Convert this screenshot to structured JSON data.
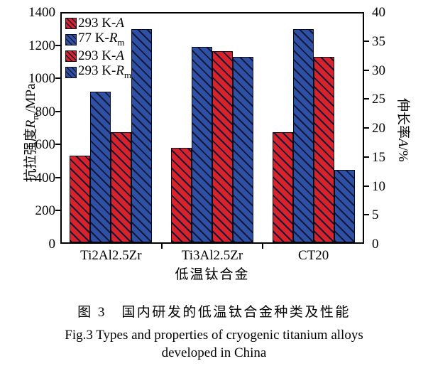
{
  "figure": {
    "caption_cn": "图 3　国内研发的低温钛合金种类及性能",
    "caption_en_line1": "Fig.3 Types and properties of cryogenic titanium alloys",
    "caption_en_line2": "developed in China"
  },
  "colors": {
    "red_bar": "#d8232a",
    "blue_bar": "#2e51a5",
    "hatch_line": "#15173a",
    "axis": "#000000"
  },
  "chart_data": {
    "type": "bar",
    "categories": [
      "Ti2Al2.5Zr",
      "Ti3Al2.5Zr",
      "CT20"
    ],
    "series": [
      {
        "name": "293 K-A",
        "label_prefix": "293 K-",
        "symbol": "A",
        "symbol_sub": "",
        "color_key": "red",
        "axis": "right",
        "values": [
          15.0,
          16.3,
          19.0
        ]
      },
      {
        "name": "77 K-Rm",
        "label_prefix": "77 K-",
        "symbol": "R",
        "symbol_sub": "m",
        "color_key": "blue",
        "axis": "left",
        "values": [
          910,
          1180,
          1290
        ]
      },
      {
        "name": "293 K-A",
        "label_prefix": "293 K-",
        "symbol": "A",
        "symbol_sub": "",
        "color_key": "red",
        "axis": "right",
        "values": [
          19.0,
          33.0,
          32.0
        ]
      },
      {
        "name": "293 K-Rm",
        "label_prefix": "293 K-",
        "symbol": "R",
        "symbol_sub": "m",
        "color_key": "blue",
        "axis": "left",
        "values": [
          1290,
          1120,
          440
        ]
      }
    ],
    "left_axis": {
      "label_cn": "抗拉强度",
      "symbol": "R",
      "symbol_sub": "m",
      "unit": "/MPa",
      "min": 0,
      "max": 1400,
      "step": 200
    },
    "right_axis": {
      "label_cn": "伸长率",
      "symbol": "A",
      "symbol_sub": "",
      "unit": "/%",
      "min": 0,
      "max": 40,
      "step": 5
    },
    "xlabel": "低温钛合金",
    "legend_position": "top-left",
    "grid": false
  }
}
